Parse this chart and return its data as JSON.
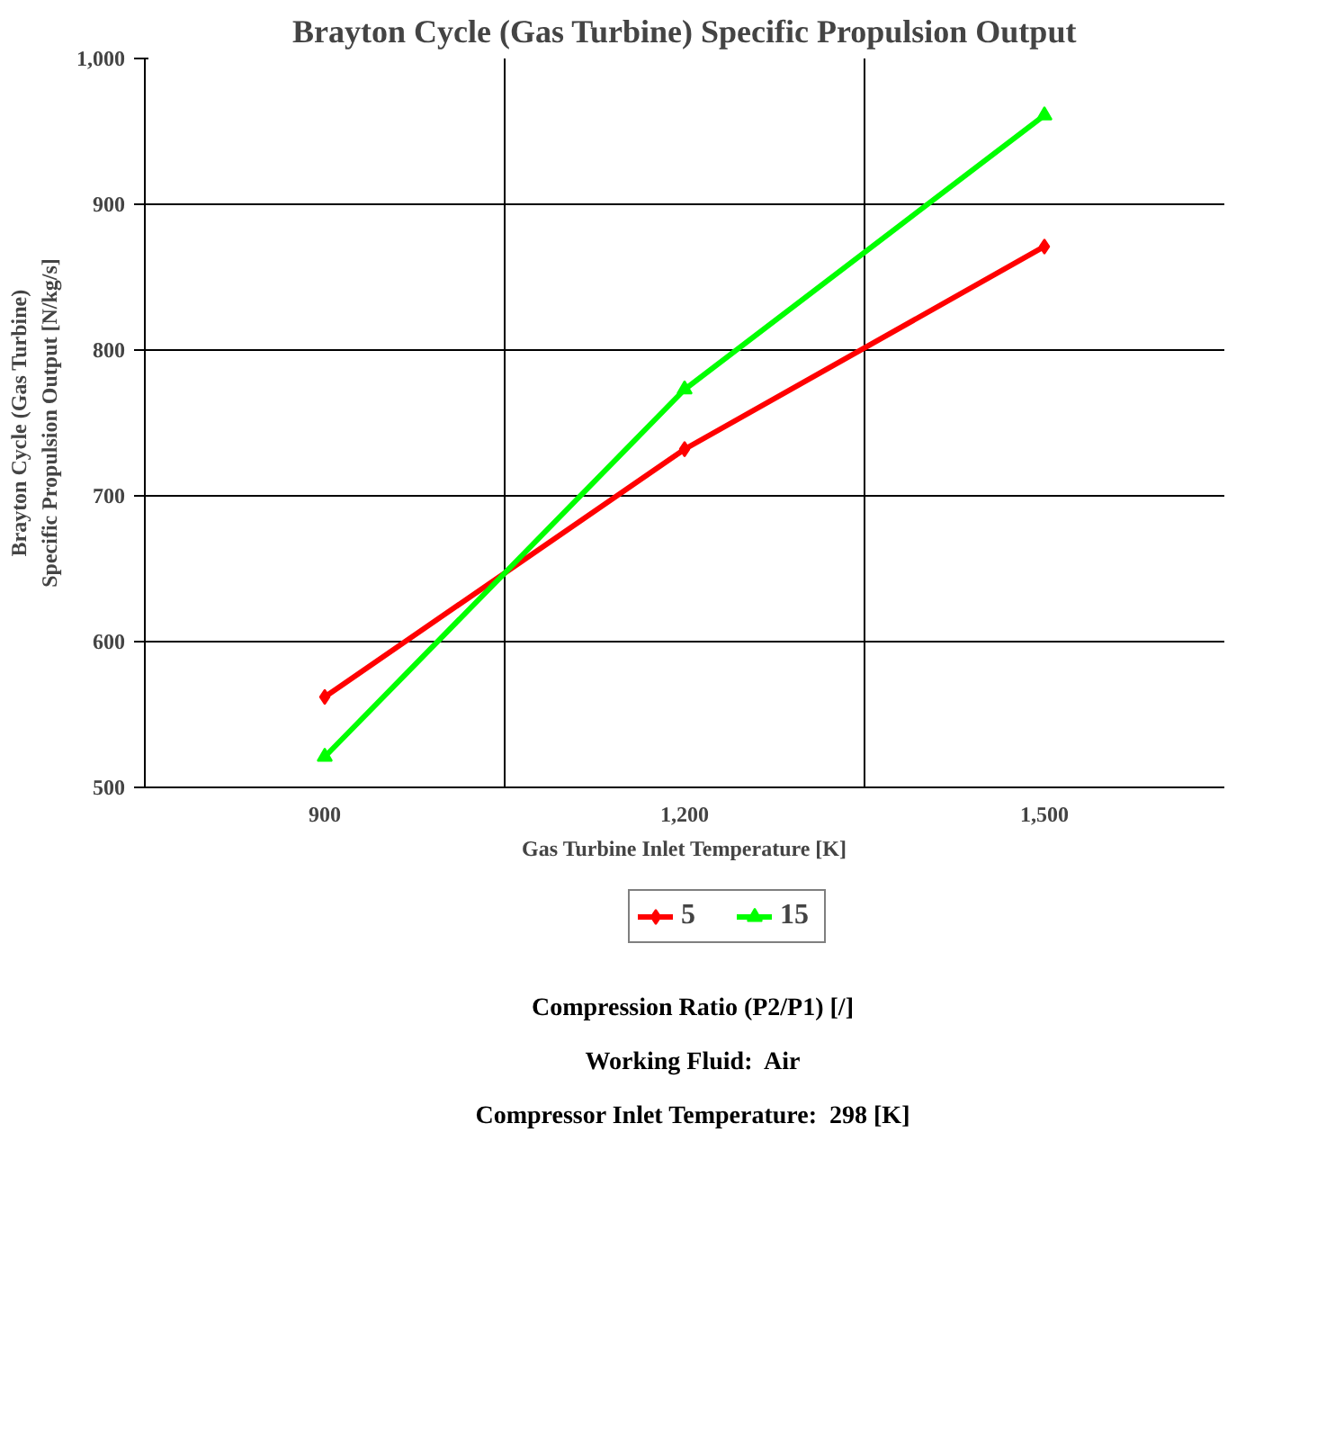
{
  "chart_data": {
    "type": "line",
    "title": "Brayton Cycle (Gas Turbine) Specific Propulsion Output",
    "xlabel": "Gas Turbine Inlet Temperature [K]",
    "ylabel": "Brayton Cycle (Gas Turbine) Specific Propulsion Output [N/kg/s]",
    "categories": [
      "900",
      "1,200",
      "1,500"
    ],
    "series": [
      {
        "name": "5",
        "color": "#ff0000",
        "marker": "diamond",
        "values": [
          562,
          732,
          871
        ]
      },
      {
        "name": "15",
        "color": "#00ff00",
        "marker": "triangle",
        "values": [
          521,
          773,
          961
        ]
      }
    ],
    "ylim": [
      500,
      1000
    ],
    "yticks": [
      {
        "value": 500,
        "label": "500"
      },
      {
        "value": 600,
        "label": "600"
      },
      {
        "value": 700,
        "label": "700"
      },
      {
        "value": 800,
        "label": "800"
      },
      {
        "value": 900,
        "label": "900"
      },
      {
        "value": 1000,
        "label": "1,000"
      }
    ],
    "grid": true,
    "legend": "bottom",
    "line_style": "solid",
    "annotations": [
      "Compression Ratio (P2/P1) [/]",
      "Working Fluid:  Air",
      "Compressor Inlet Temperature:  298 [K]"
    ]
  }
}
